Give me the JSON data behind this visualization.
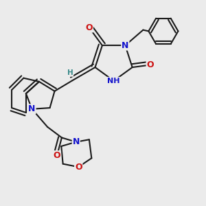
{
  "bg_color": "#ebebeb",
  "bond_color": "#1a1a1a",
  "bond_lw": 1.5,
  "colors": {
    "O": "#cc1111",
    "N": "#1111cc",
    "H": "#3a8a8a",
    "bond": "#1a1a1a"
  },
  "fs": 8.0
}
